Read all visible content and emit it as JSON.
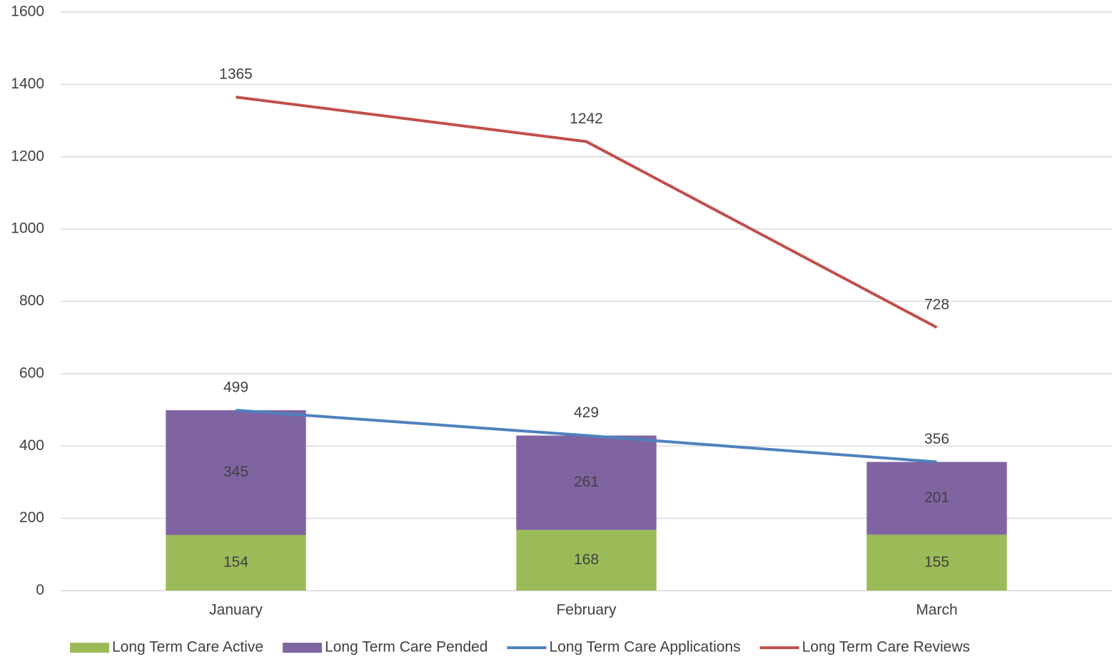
{
  "chart_data": {
    "type": "bar",
    "stacked": true,
    "categories": [
      "January",
      "February",
      "March"
    ],
    "series": [
      {
        "name": "Long Term Care Active",
        "color": "#9bbb59",
        "kind": "bar",
        "values": [
          154,
          168,
          155
        ]
      },
      {
        "name": "Long Term Care Pended",
        "color": "#8064a2",
        "kind": "bar",
        "values": [
          345,
          261,
          201
        ]
      },
      {
        "name": "Long Term Care Applications",
        "color": "#4f81bd",
        "kind": "line",
        "values": [
          499,
          429,
          356
        ]
      },
      {
        "name": "Long Term Care Reviews",
        "color": "#c0504d",
        "kind": "line",
        "values": [
          1365,
          1242,
          728
        ]
      }
    ],
    "ylim": [
      0,
      1600
    ],
    "yticks": [
      0,
      200,
      400,
      600,
      800,
      1000,
      1200,
      1400,
      1600
    ],
    "grid": true,
    "legend": "bottom"
  }
}
